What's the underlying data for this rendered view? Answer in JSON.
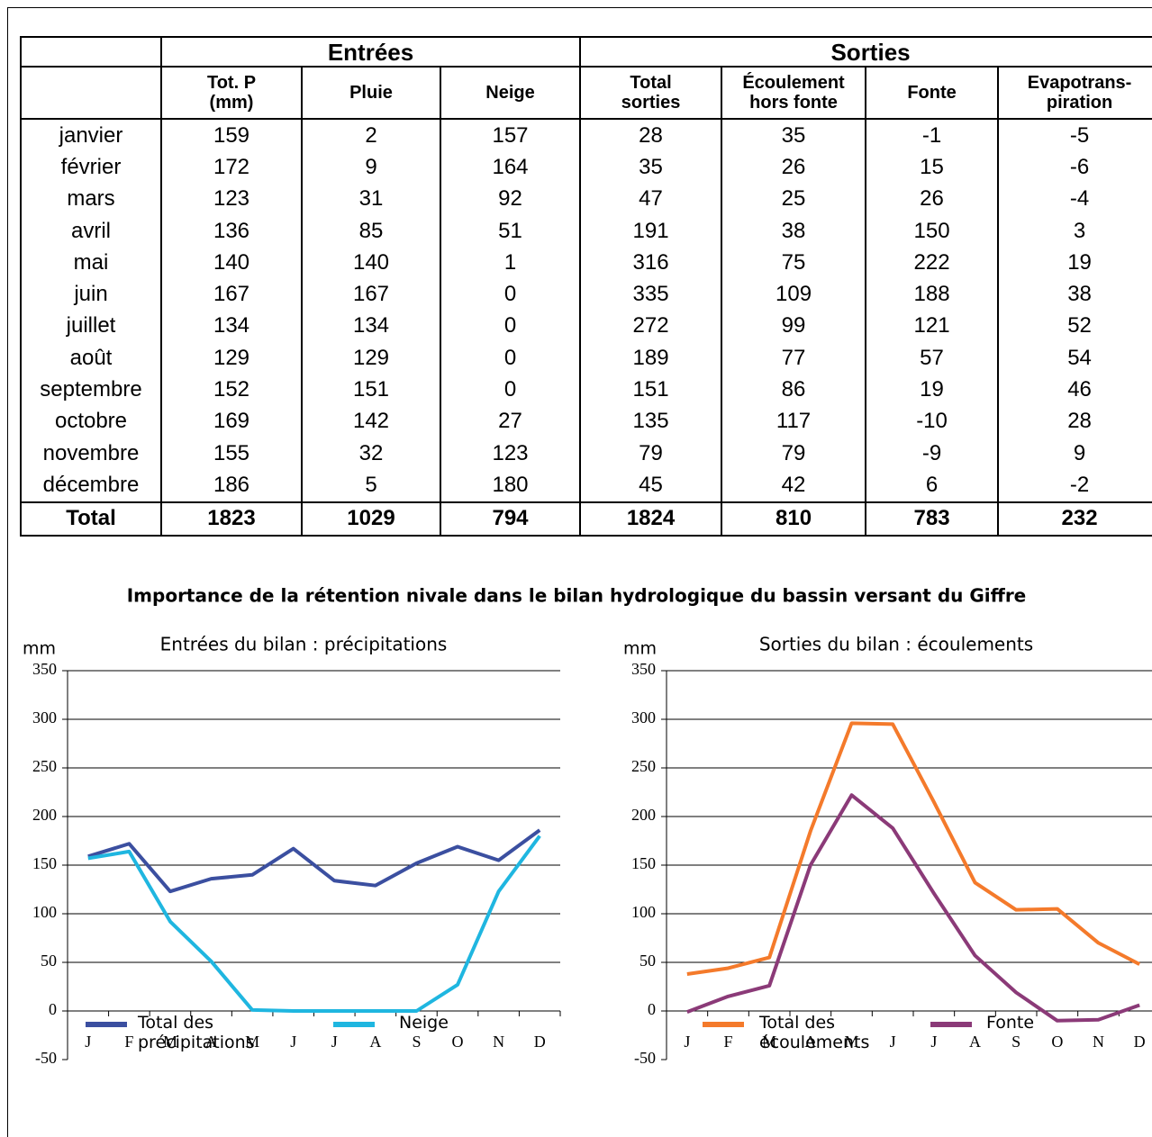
{
  "table": {
    "group_headers": [
      "Entrées",
      "Sorties"
    ],
    "column_headers": [
      "Tot. P\n(mm)",
      "Pluie",
      "Neige",
      "Total\nsorties",
      "Écoulement\nhors fonte",
      "Fonte",
      "Evapotrans-\npiration"
    ],
    "rows": [
      [
        "janvier",
        159,
        2,
        157,
        28,
        35,
        -1,
        -5
      ],
      [
        "février",
        172,
        9,
        164,
        35,
        26,
        15,
        -6
      ],
      [
        "mars",
        123,
        31,
        92,
        47,
        25,
        26,
        -4
      ],
      [
        "avril",
        136,
        85,
        51,
        191,
        38,
        150,
        3
      ],
      [
        "mai",
        140,
        140,
        1,
        316,
        75,
        222,
        19
      ],
      [
        "juin",
        167,
        167,
        0,
        335,
        109,
        188,
        38
      ],
      [
        "juillet",
        134,
        134,
        0,
        272,
        99,
        121,
        52
      ],
      [
        "août",
        129,
        129,
        0,
        189,
        77,
        57,
        54
      ],
      [
        "septembre",
        152,
        151,
        0,
        151,
        86,
        19,
        46
      ],
      [
        "octobre",
        169,
        142,
        27,
        135,
        117,
        -10,
        28
      ],
      [
        "novembre",
        155,
        32,
        123,
        79,
        79,
        -9,
        9
      ],
      [
        "décembre",
        186,
        5,
        180,
        45,
        42,
        6,
        -2
      ]
    ],
    "total": [
      "Total",
      1823,
      1029,
      794,
      1824,
      810,
      783,
      232
    ]
  },
  "charts_title": "Importance de la rétention nivale dans le bilan  hydrologique du bassin versant du Giffre",
  "charts": [
    {
      "type": "line",
      "title": "Entrées du bilan : précipitations",
      "ylabel": "mm",
      "categories": [
        "J",
        "F",
        "M",
        "A",
        "M",
        "J",
        "J",
        "A",
        "S",
        "O",
        "N",
        "D"
      ],
      "ylim": [
        -50,
        350
      ],
      "yticks": [
        -50,
        0,
        50,
        100,
        150,
        200,
        250,
        300,
        350
      ],
      "grid": true,
      "series": [
        {
          "name": "Total des précipitations",
          "color": "#3b4fa0",
          "values": [
            159,
            172,
            123,
            136,
            140,
            167,
            134,
            129,
            152,
            169,
            155,
            186
          ]
        },
        {
          "name": "Neige",
          "color": "#1fb6e0",
          "values": [
            157,
            164,
            92,
            51,
            1,
            0,
            0,
            0,
            0,
            27,
            123,
            180
          ]
        }
      ]
    },
    {
      "type": "line",
      "title": "Sorties du bilan : écoulements",
      "ylabel": "mm",
      "categories": [
        "J",
        "F",
        "M",
        "A",
        "M",
        "J",
        "J",
        "A",
        "S",
        "O",
        "N",
        "D"
      ],
      "ylim": [
        -50,
        350
      ],
      "yticks": [
        -50,
        0,
        50,
        100,
        150,
        200,
        250,
        300,
        350
      ],
      "grid": true,
      "series": [
        {
          "name": "Total des écoulements",
          "color": "#f47a2b",
          "values": [
            38,
            44,
            55,
            185,
            296,
            295,
            215,
            132,
            104,
            105,
            70,
            48
          ]
        },
        {
          "name": "Fonte",
          "color": "#8b3a78",
          "values": [
            -1,
            15,
            26,
            150,
            222,
            188,
            121,
            57,
            19,
            -10,
            -9,
            6
          ]
        }
      ]
    }
  ]
}
